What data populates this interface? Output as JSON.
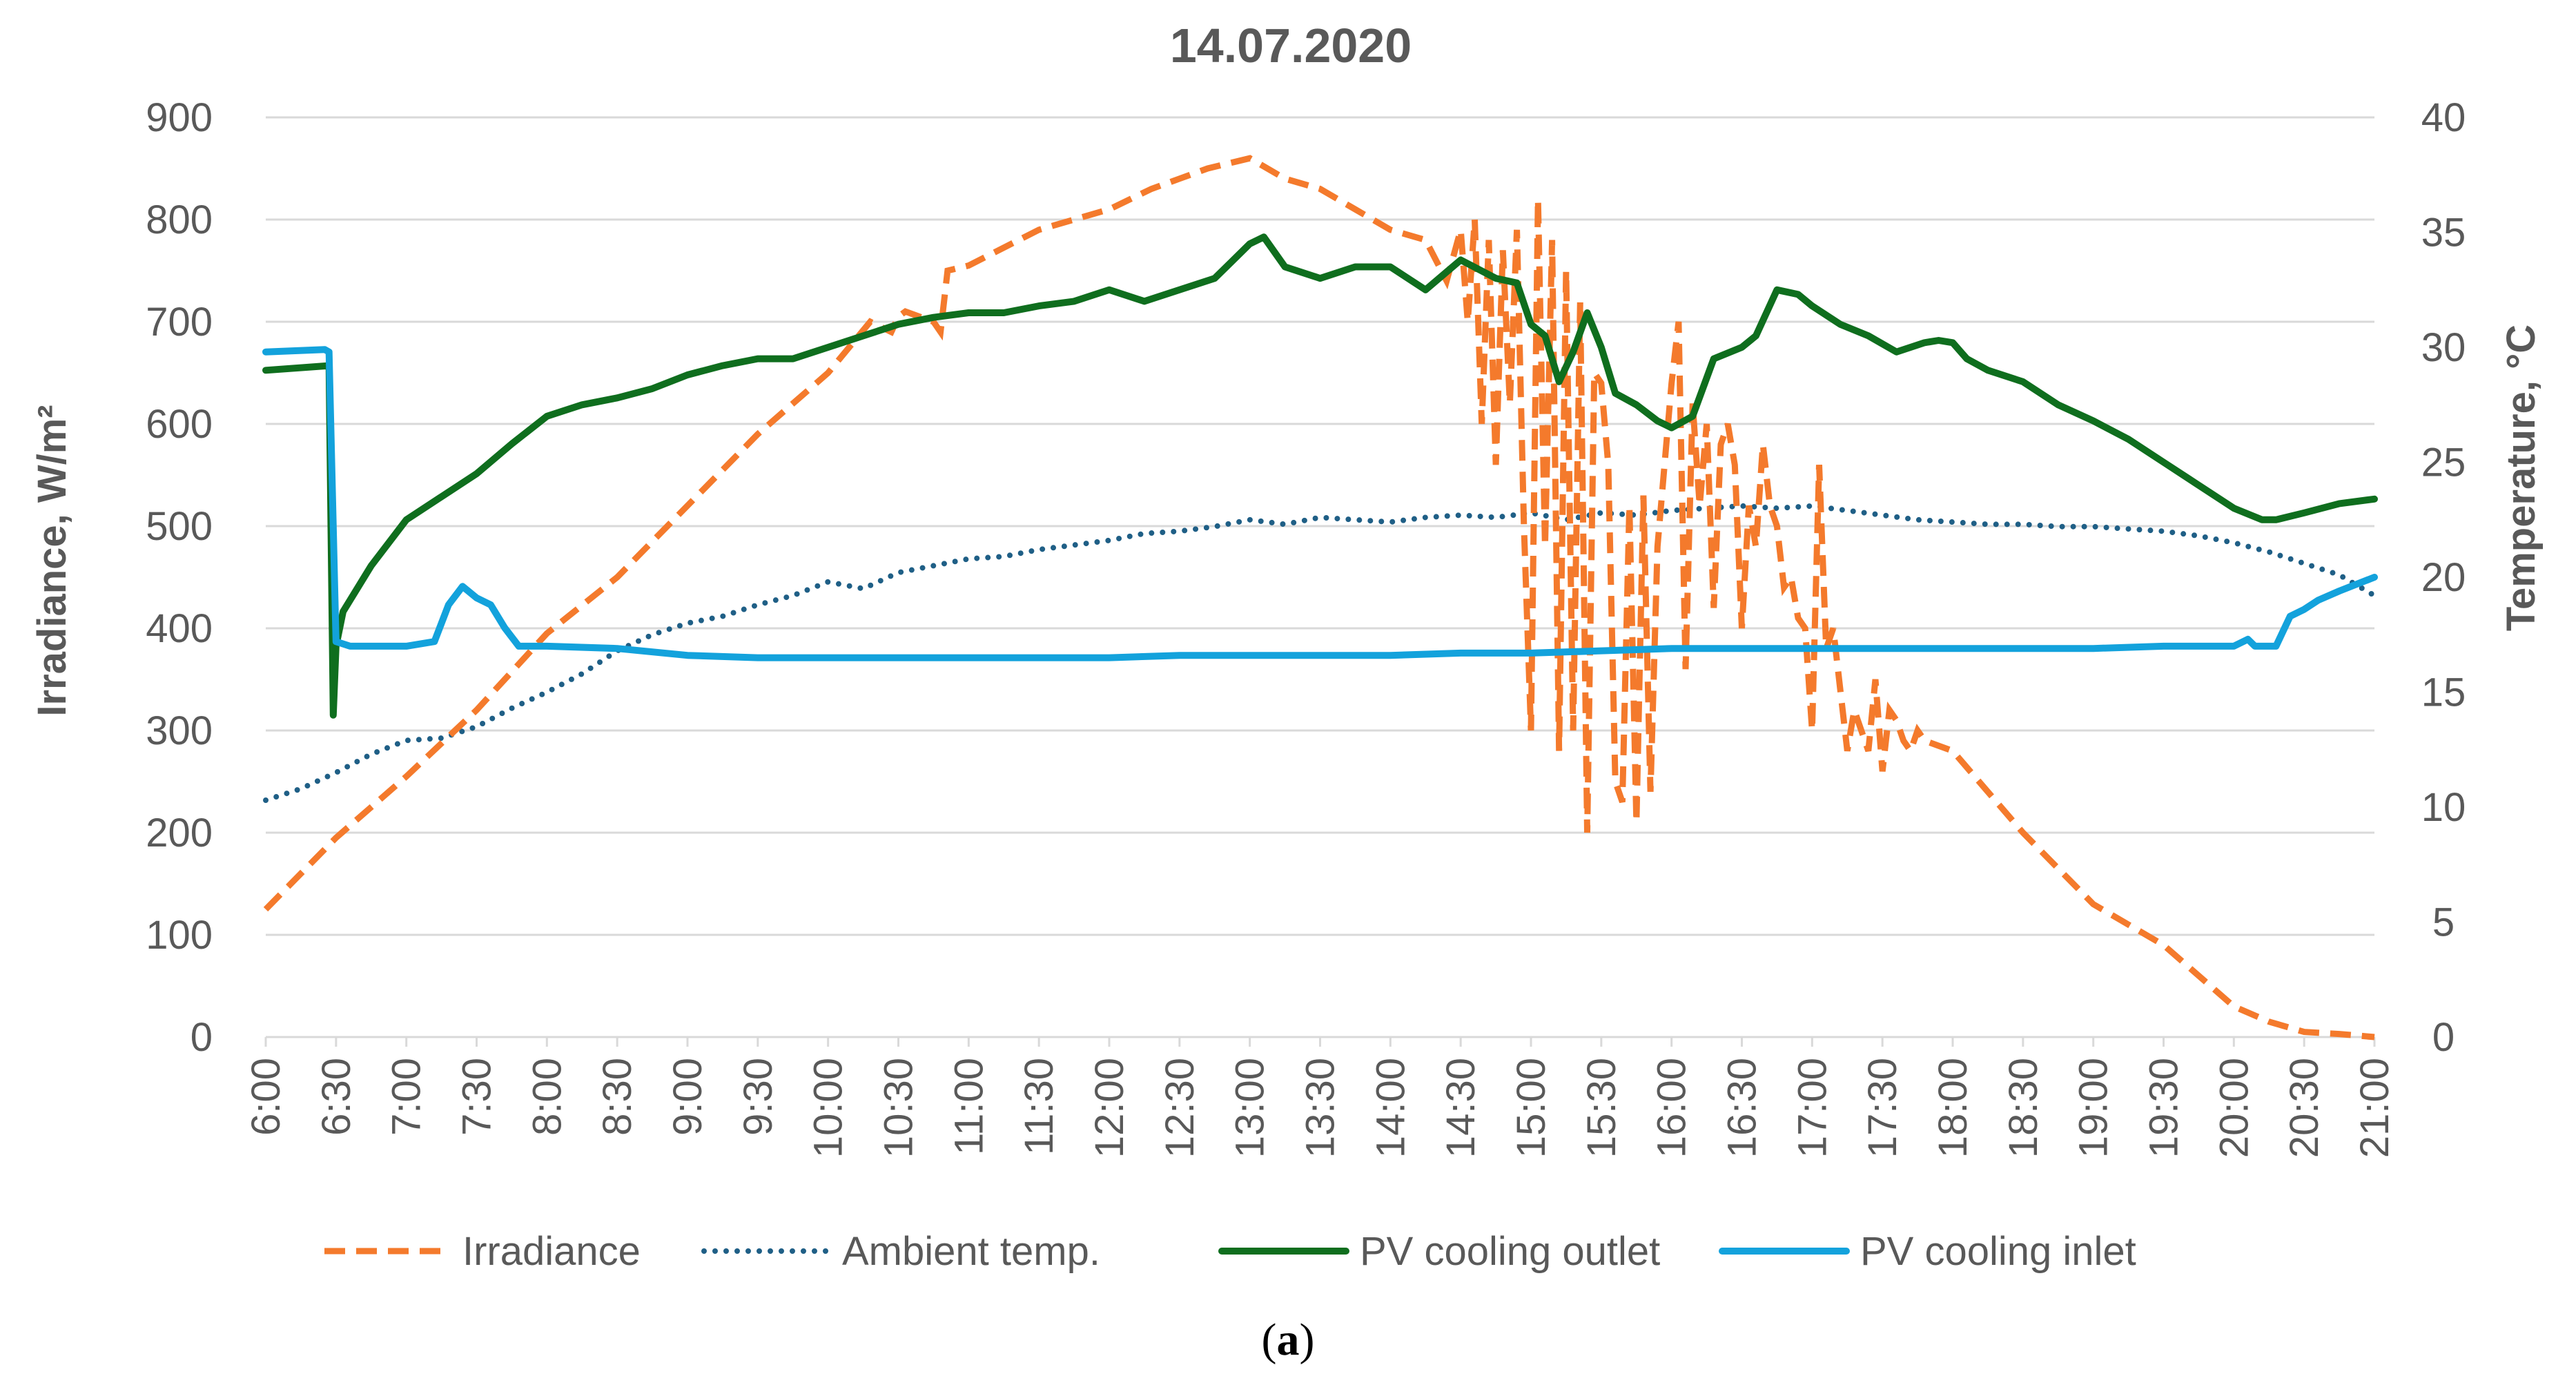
{
  "chart_data": {
    "type": "line",
    "title": "14.07.2020",
    "caption_letter": "a",
    "y_left_label": "Irradiance, W/m²",
    "y_right_label": "Temperature, °C",
    "y_left_range": [
      0,
      900
    ],
    "y_left_ticks": [
      "0",
      "100",
      "200",
      "300",
      "400",
      "500",
      "600",
      "700",
      "800",
      "900"
    ],
    "y_right_range": [
      0,
      40
    ],
    "y_right_ticks": [
      "0",
      "5",
      "10",
      "15",
      "20",
      "25",
      "30",
      "35",
      "40"
    ],
    "x_ticks": [
      "6:00",
      "6:30",
      "7:00",
      "7:30",
      "8:00",
      "8:30",
      "9:00",
      "9:30",
      "10:00",
      "10:30",
      "11:00",
      "11:30",
      "12:00",
      "12:30",
      "13:00",
      "13:30",
      "14:00",
      "14:30",
      "15:00",
      "15:30",
      "16:00",
      "16:30",
      "17:00",
      "17:30",
      "18:00",
      "18:30",
      "19:00",
      "19:30",
      "20:00",
      "20:30",
      "21:00"
    ],
    "x_range_hours": [
      6,
      21
    ],
    "grid": "horizontal",
    "legend_position": "bottom",
    "series": [
      {
        "name": "Irradiance",
        "axis": "left",
        "style": "dashed",
        "color": "#f47a2c",
        "x": [
          6.0,
          6.5,
          7.0,
          7.5,
          8.0,
          8.5,
          9.0,
          9.5,
          10.0,
          10.3,
          10.45,
          10.5,
          10.55,
          10.75,
          10.8,
          10.85,
          11.0,
          11.5,
          12.0,
          12.3,
          12.5,
          12.7,
          13.0,
          13.25,
          13.5,
          13.75,
          14.0,
          14.25,
          14.4,
          14.5,
          14.55,
          14.6,
          14.65,
          14.7,
          14.75,
          14.8,
          14.85,
          14.9,
          14.95,
          15.0,
          15.05,
          15.1,
          15.15,
          15.2,
          15.25,
          15.3,
          15.35,
          15.4,
          15.45,
          15.5,
          15.55,
          15.6,
          15.65,
          15.7,
          15.75,
          15.8,
          15.85,
          15.9,
          15.95,
          16.0,
          16.05,
          16.1,
          16.15,
          16.2,
          16.25,
          16.3,
          16.35,
          16.4,
          16.45,
          16.5,
          16.55,
          16.6,
          16.65,
          16.7,
          16.75,
          16.8,
          16.85,
          16.9,
          16.95,
          17.0,
          17.05,
          17.1,
          17.15,
          17.2,
          17.25,
          17.3,
          17.35,
          17.4,
          17.45,
          17.5,
          17.55,
          17.6,
          17.65,
          17.7,
          17.75,
          17.8,
          18.0,
          18.5,
          19.0,
          19.5,
          20.0,
          20.25,
          20.5,
          20.75,
          21.0
        ],
        "values": [
          125,
          195,
          255,
          320,
          395,
          450,
          520,
          590,
          650,
          700,
          690,
          705,
          710,
          700,
          690,
          750,
          755,
          790,
          810,
          830,
          840,
          850,
          860,
          840,
          830,
          810,
          790,
          780,
          740,
          790,
          700,
          800,
          600,
          780,
          560,
          770,
          620,
          790,
          500,
          300,
          820,
          480,
          780,
          280,
          750,
          300,
          720,
          200,
          650,
          640,
          560,
          250,
          230,
          520,
          210,
          530,
          240,
          480,
          560,
          640,
          700,
          360,
          620,
          520,
          600,
          420,
          580,
          600,
          560,
          400,
          520,
          480,
          580,
          520,
          500,
          440,
          450,
          410,
          400,
          300,
          560,
          380,
          400,
          340,
          280,
          320,
          300,
          280,
          350,
          260,
          320,
          310,
          290,
          280,
          300,
          290,
          280,
          200,
          130,
          90,
          30,
          15,
          5,
          3,
          0
        ]
      },
      {
        "name": "Ambient temp.",
        "axis": "right",
        "style": "dotted",
        "color": "#1f5f86",
        "x": [
          6.0,
          6.25,
          6.5,
          6.75,
          7.0,
          7.25,
          7.5,
          7.75,
          8.0,
          8.25,
          8.5,
          8.75,
          9.0,
          9.25,
          9.5,
          9.75,
          10.0,
          10.25,
          10.5,
          10.75,
          11.0,
          11.25,
          11.5,
          11.75,
          12.0,
          12.25,
          12.5,
          12.75,
          13.0,
          13.25,
          13.5,
          13.75,
          14.0,
          14.25,
          14.5,
          14.75,
          15.0,
          15.25,
          15.5,
          15.75,
          16.0,
          16.25,
          16.5,
          16.75,
          17.0,
          17.25,
          17.5,
          17.75,
          18.0,
          18.25,
          18.5,
          18.75,
          19.0,
          19.25,
          19.5,
          19.75,
          20.0,
          20.25,
          20.5,
          20.75,
          21.0
        ],
        "values": [
          10.3,
          10.8,
          11.5,
          12.3,
          12.9,
          13.0,
          13.5,
          14.3,
          15.0,
          15.8,
          16.8,
          17.5,
          18.0,
          18.3,
          18.8,
          19.2,
          19.8,
          19.5,
          20.2,
          20.5,
          20.8,
          20.9,
          21.2,
          21.4,
          21.6,
          21.9,
          22.0,
          22.2,
          22.5,
          22.3,
          22.6,
          22.5,
          22.4,
          22.6,
          22.7,
          22.6,
          22.8,
          22.5,
          22.8,
          22.7,
          22.9,
          23.0,
          23.1,
          23.0,
          23.1,
          22.9,
          22.7,
          22.5,
          22.4,
          22.3,
          22.3,
          22.2,
          22.2,
          22.1,
          22.0,
          21.8,
          21.5,
          21.1,
          20.6,
          20.1,
          19.2
        ]
      },
      {
        "name": "PV cooling outlet",
        "axis": "right",
        "style": "solid",
        "color": "#0f6e1e",
        "x": [
          6.0,
          6.45,
          6.48,
          6.5,
          6.55,
          6.75,
          7.0,
          7.25,
          7.5,
          7.75,
          8.0,
          8.25,
          8.5,
          8.75,
          9.0,
          9.25,
          9.5,
          9.75,
          10.0,
          10.25,
          10.5,
          10.75,
          11.0,
          11.25,
          11.5,
          11.75,
          12.0,
          12.25,
          12.5,
          12.75,
          13.0,
          13.1,
          13.25,
          13.5,
          13.75,
          14.0,
          14.25,
          14.5,
          14.75,
          14.9,
          15.0,
          15.1,
          15.2,
          15.3,
          15.4,
          15.5,
          15.6,
          15.75,
          15.9,
          16.0,
          16.15,
          16.3,
          16.5,
          16.6,
          16.75,
          16.9,
          17.0,
          17.2,
          17.4,
          17.6,
          17.8,
          17.9,
          18.0,
          18.1,
          18.25,
          18.5,
          18.75,
          19.0,
          19.25,
          19.5,
          19.75,
          20.0,
          20.2,
          20.3,
          20.5,
          20.75,
          21.0
        ],
        "values": [
          29.0,
          29.2,
          14.0,
          17.0,
          18.5,
          20.5,
          22.5,
          23.5,
          24.5,
          25.8,
          27.0,
          27.5,
          27.8,
          28.2,
          28.8,
          29.2,
          29.5,
          29.5,
          30.0,
          30.5,
          31.0,
          31.3,
          31.5,
          31.5,
          31.8,
          32.0,
          32.5,
          32.0,
          32.5,
          33.0,
          34.5,
          34.8,
          33.5,
          33.0,
          33.5,
          33.5,
          32.5,
          33.8,
          33.0,
          32.8,
          31.0,
          30.5,
          28.5,
          29.8,
          31.5,
          30.0,
          28.0,
          27.5,
          26.8,
          26.5,
          27.0,
          29.5,
          30.0,
          30.5,
          32.5,
          32.3,
          31.8,
          31.0,
          30.5,
          29.8,
          30.2,
          30.3,
          30.2,
          29.5,
          29.0,
          28.5,
          27.5,
          26.8,
          26.0,
          25.0,
          24.0,
          23.0,
          22.5,
          22.5,
          22.8,
          23.2,
          23.4
        ]
      },
      {
        "name": "PV cooling inlet",
        "axis": "right",
        "style": "solid",
        "color": "#13a2dc",
        "x": [
          6.0,
          6.42,
          6.45,
          6.5,
          6.6,
          6.75,
          7.0,
          7.2,
          7.3,
          7.4,
          7.5,
          7.6,
          7.7,
          7.8,
          8.0,
          8.5,
          9.0,
          9.5,
          10.0,
          10.5,
          11.0,
          11.5,
          12.0,
          12.5,
          13.0,
          13.5,
          14.0,
          14.5,
          15.0,
          15.5,
          16.0,
          16.5,
          17.0,
          17.5,
          18.0,
          18.5,
          19.0,
          19.5,
          20.0,
          20.1,
          20.15,
          20.2,
          20.3,
          20.4,
          20.5,
          20.6,
          20.75,
          21.0
        ],
        "values": [
          29.8,
          29.9,
          29.8,
          17.2,
          17.0,
          17.0,
          17.0,
          17.2,
          18.8,
          19.6,
          19.1,
          18.8,
          17.8,
          17.0,
          17.0,
          16.9,
          16.6,
          16.5,
          16.5,
          16.5,
          16.5,
          16.5,
          16.5,
          16.6,
          16.6,
          16.6,
          16.6,
          16.7,
          16.7,
          16.8,
          16.9,
          16.9,
          16.9,
          16.9,
          16.9,
          16.9,
          16.9,
          17.0,
          17.0,
          17.3,
          17.0,
          17.0,
          17.0,
          18.3,
          18.6,
          19.0,
          19.4,
          20.0
        ]
      }
    ]
  }
}
